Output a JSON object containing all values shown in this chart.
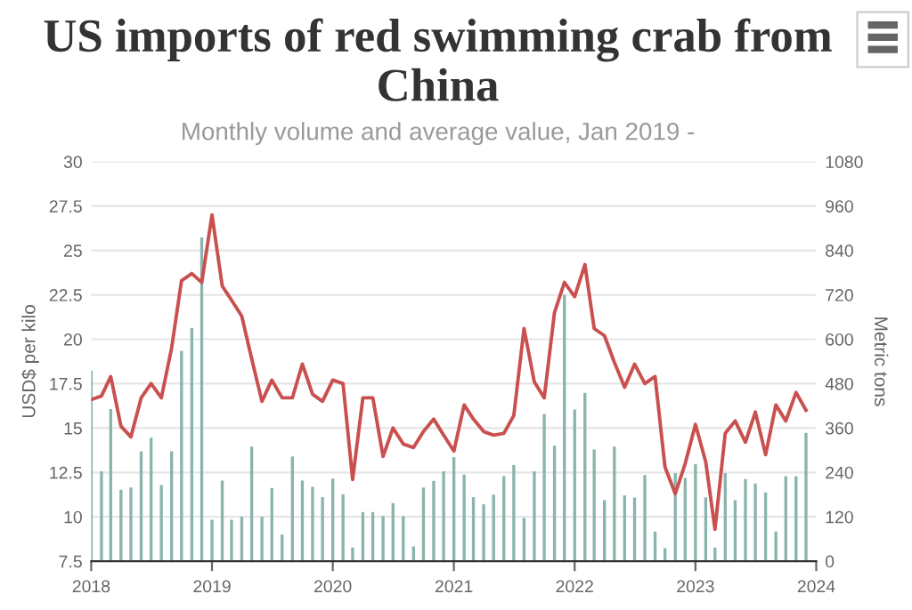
{
  "chart_data": {
    "type": "line",
    "title": "US imports of red swimming crab from China",
    "subtitle": "Monthly volume and average value, Jan 2019 -",
    "ylabel": "USD$ per kilo",
    "y2label": "Metric tons",
    "x": [
      "2018-01",
      "2018-02",
      "2018-03",
      "2018-04",
      "2018-05",
      "2018-06",
      "2018-07",
      "2018-08",
      "2018-09",
      "2018-10",
      "2018-11",
      "2018-12",
      "2019-01",
      "2019-02",
      "2019-03",
      "2019-04",
      "2019-05",
      "2019-06",
      "2019-07",
      "2019-08",
      "2019-09",
      "2019-10",
      "2019-11",
      "2019-12",
      "2020-01",
      "2020-02",
      "2020-03",
      "2020-04",
      "2020-05",
      "2020-06",
      "2020-07",
      "2020-08",
      "2020-09",
      "2020-10",
      "2020-11",
      "2020-12",
      "2021-01",
      "2021-02",
      "2021-03",
      "2021-04",
      "2021-05",
      "2021-06",
      "2021-07",
      "2021-08",
      "2021-09",
      "2021-10",
      "2021-11",
      "2021-12",
      "2022-01",
      "2022-02",
      "2022-03",
      "2022-04",
      "2022-05",
      "2022-06",
      "2022-07",
      "2022-08",
      "2022-09",
      "2022-10",
      "2022-11",
      "2022-12",
      "2023-01",
      "2023-02",
      "2023-03",
      "2023-04",
      "2023-05",
      "2023-06",
      "2023-07",
      "2023-08",
      "2023-09",
      "2023-10",
      "2023-11",
      "2023-12"
    ],
    "series": [
      {
        "type": "bar",
        "axis": "y2",
        "color": "#8ab4ae",
        "values": [
          515,
          243,
          411,
          193,
          199,
          297,
          334,
          206,
          297,
          569,
          630,
          875,
          112,
          218,
          112,
          120,
          310,
          120,
          198,
          72,
          283,
          218,
          201,
          173,
          223,
          181,
          37,
          133,
          133,
          122,
          157,
          122,
          40,
          199,
          217,
          243,
          281,
          234,
          173,
          154,
          180,
          230,
          260,
          117,
          243,
          398,
          312,
          720,
          410,
          455,
          302,
          165,
          310,
          178,
          172,
          233,
          80,
          35,
          238,
          225,
          262,
          173,
          37,
          238,
          165,
          222,
          210,
          186,
          80,
          230,
          230,
          347
        ]
      },
      {
        "color": "#c9504f",
        "values": [
          16.6,
          16.8,
          17.9,
          15.1,
          14.5,
          16.7,
          17.5,
          16.7,
          19.5,
          23.3,
          23.7,
          23.2,
          27.0,
          23.0,
          22.2,
          21.3,
          18.9,
          16.5,
          17.7,
          16.7,
          16.7,
          18.6,
          16.9,
          16.5,
          17.7,
          17.5,
          12.1,
          16.7,
          16.7,
          13.4,
          15.0,
          14.1,
          13.9,
          14.8,
          15.5,
          14.6,
          13.7,
          16.3,
          15.5,
          14.8,
          14.6,
          14.7,
          15.7,
          20.6,
          17.6,
          16.7,
          21.5,
          23.2,
          22.4,
          24.2,
          20.6,
          20.2,
          18.7,
          17.3,
          18.6,
          17.5,
          17.9,
          12.8,
          11.3,
          13.0,
          15.2,
          13.1,
          9.3,
          14.7,
          15.4,
          14.2,
          15.9,
          13.5,
          16.3,
          15.4,
          17.0,
          16.0
        ]
      }
    ],
    "xlim": [
      "2018-01",
      "2024-01"
    ],
    "xticks": [
      {
        "value": "2018-01",
        "label": "2018"
      },
      {
        "value": "2019-01",
        "label": "2019"
      },
      {
        "value": "2020-01",
        "label": "2020"
      },
      {
        "value": "2021-01",
        "label": "2021"
      },
      {
        "value": "2022-01",
        "label": "2022"
      },
      {
        "value": "2023-01",
        "label": "2023"
      },
      {
        "value": "2024-01",
        "label": "2024"
      }
    ],
    "ylim": [
      7.5,
      30
    ],
    "yticks": [
      7.5,
      10,
      12.5,
      15,
      17.5,
      20,
      22.5,
      25,
      27.5,
      30
    ],
    "y2lim": [
      0,
      1080
    ],
    "y2ticks": [
      0,
      120,
      240,
      360,
      480,
      600,
      720,
      840,
      960,
      1080
    ],
    "grid": "y",
    "legend": false,
    "marker": "none",
    "line_style": "solid"
  }
}
